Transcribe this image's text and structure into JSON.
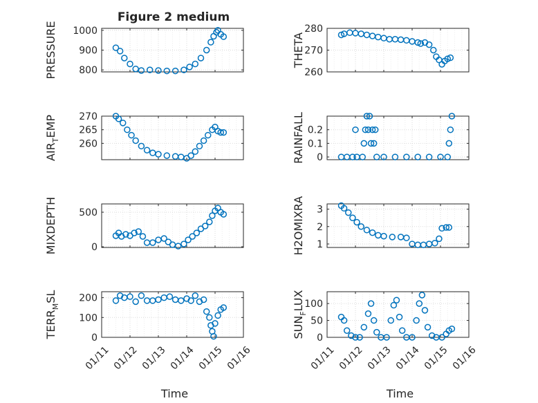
{
  "figure": {
    "title": "Figure 2 medium",
    "marker_color": "#0072bd",
    "grid_color": "#d9d9d9",
    "axis_color": "#262626"
  },
  "chart_data": [
    {
      "type": "scatter",
      "title": "Figure 2 medium",
      "ylabel": "PRESSURE",
      "ylabel_main": "PRESSURE",
      "ylabel_sub": "",
      "ylabel_tail": "",
      "xlabel": "",
      "xlim": [
        0,
        5
      ],
      "ylim": [
        790,
        1010
      ],
      "yticks": [
        800,
        900,
        1000
      ],
      "ytick_labels": [
        "800",
        "900",
        "1000"
      ],
      "xticks": [
        0,
        1,
        2,
        3,
        4,
        5
      ],
      "xtick_labels": [
        "01/11",
        "01/12",
        "01/13",
        "01/14",
        "01/15",
        "01/16"
      ],
      "show_xtick_labels": false,
      "grid": true,
      "points": [
        [
          0.5,
          912
        ],
        [
          0.65,
          895
        ],
        [
          0.8,
          860
        ],
        [
          1.0,
          830
        ],
        [
          1.2,
          805
        ],
        [
          1.4,
          797
        ],
        [
          1.7,
          800
        ],
        [
          2.0,
          797
        ],
        [
          2.3,
          795
        ],
        [
          2.6,
          795
        ],
        [
          2.9,
          800
        ],
        [
          3.1,
          815
        ],
        [
          3.3,
          830
        ],
        [
          3.5,
          860
        ],
        [
          3.7,
          900
        ],
        [
          3.85,
          940
        ],
        [
          3.95,
          970
        ],
        [
          4.05,
          990
        ],
        [
          4.1,
          1000
        ],
        [
          4.2,
          980
        ],
        [
          4.3,
          968
        ]
      ]
    },
    {
      "type": "scatter",
      "ylabel": "THETA",
      "ylabel_main": "THETA",
      "ylabel_sub": "",
      "ylabel_tail": "",
      "xlabel": "",
      "xlim": [
        0,
        5
      ],
      "ylim": [
        260,
        280
      ],
      "yticks": [
        260,
        270,
        280
      ],
      "ytick_labels": [
        "260",
        "270",
        "280"
      ],
      "xticks": [
        0,
        1,
        2,
        3,
        4,
        5
      ],
      "xtick_labels": [
        "01/11",
        "01/12",
        "01/13",
        "01/14",
        "01/15",
        "01/16"
      ],
      "show_xtick_labels": false,
      "grid": true,
      "points": [
        [
          0.5,
          277
        ],
        [
          0.6,
          277.5
        ],
        [
          0.8,
          278
        ],
        [
          1.0,
          277.8
        ],
        [
          1.2,
          277.5
        ],
        [
          1.4,
          277
        ],
        [
          1.6,
          276.5
        ],
        [
          1.8,
          276
        ],
        [
          2.0,
          275.5
        ],
        [
          2.2,
          275
        ],
        [
          2.4,
          275
        ],
        [
          2.6,
          274.8
        ],
        [
          2.8,
          274.5
        ],
        [
          3.0,
          274
        ],
        [
          3.2,
          273.5
        ],
        [
          3.3,
          273
        ],
        [
          3.45,
          273.5
        ],
        [
          3.6,
          272.5
        ],
        [
          3.75,
          270
        ],
        [
          3.85,
          267
        ],
        [
          3.95,
          265.5
        ],
        [
          4.05,
          263.5
        ],
        [
          4.15,
          265
        ],
        [
          4.25,
          266
        ],
        [
          4.35,
          266.5
        ]
      ]
    },
    {
      "type": "scatter",
      "ylabel": "AIR_TEMP",
      "ylabel_main": "AIR",
      "ylabel_sub": "T",
      "ylabel_tail": "EMP",
      "xlabel": "",
      "xlim": [
        0,
        5
      ],
      "ylim": [
        254,
        270
      ],
      "yticks": [
        260,
        265,
        270
      ],
      "ytick_labels": [
        "260",
        "265",
        "270"
      ],
      "xticks": [
        0,
        1,
        2,
        3,
        4,
        5
      ],
      "xtick_labels": [
        "01/11",
        "01/12",
        "01/13",
        "01/14",
        "01/15",
        "01/16"
      ],
      "show_xtick_labels": false,
      "grid": true,
      "points": [
        [
          0.5,
          270
        ],
        [
          0.6,
          269
        ],
        [
          0.75,
          267.5
        ],
        [
          0.9,
          265
        ],
        [
          1.05,
          263
        ],
        [
          1.2,
          261
        ],
        [
          1.4,
          259
        ],
        [
          1.6,
          257.5
        ],
        [
          1.8,
          256.5
        ],
        [
          2.0,
          256
        ],
        [
          2.3,
          255.5
        ],
        [
          2.6,
          255.2
        ],
        [
          2.8,
          255
        ],
        [
          3.0,
          254.5
        ],
        [
          3.15,
          255.5
        ],
        [
          3.3,
          257
        ],
        [
          3.45,
          259
        ],
        [
          3.6,
          261
        ],
        [
          3.75,
          263
        ],
        [
          3.9,
          265
        ],
        [
          4.0,
          266
        ],
        [
          4.1,
          264.5
        ],
        [
          4.2,
          264
        ],
        [
          4.3,
          264
        ]
      ]
    },
    {
      "type": "scatter",
      "ylabel": "RAINFALL",
      "ylabel_main": "RAINFALL",
      "ylabel_sub": "",
      "ylabel_tail": "",
      "xlabel": "",
      "xlim": [
        0,
        5
      ],
      "ylim": [
        -0.02,
        0.3
      ],
      "yticks": [
        0,
        0.1,
        0.2
      ],
      "ytick_labels": [
        "0",
        "0.1",
        "0.2"
      ],
      "xticks": [
        0,
        1,
        2,
        3,
        4,
        5
      ],
      "xtick_labels": [
        "01/11",
        "01/12",
        "01/13",
        "01/14",
        "01/15",
        "01/16"
      ],
      "show_xtick_labels": false,
      "grid": true,
      "points": [
        [
          0.5,
          0
        ],
        [
          0.7,
          0
        ],
        [
          0.9,
          0
        ],
        [
          1.0,
          0.2
        ],
        [
          1.05,
          0
        ],
        [
          1.25,
          0
        ],
        [
          1.3,
          0.1
        ],
        [
          1.35,
          0.2
        ],
        [
          1.4,
          0.3
        ],
        [
          1.45,
          0.2
        ],
        [
          1.5,
          0.3
        ],
        [
          1.55,
          0.1
        ],
        [
          1.6,
          0.2
        ],
        [
          1.65,
          0.1
        ],
        [
          1.7,
          0.2
        ],
        [
          1.75,
          0
        ],
        [
          2.0,
          0
        ],
        [
          2.4,
          0
        ],
        [
          2.8,
          0
        ],
        [
          3.2,
          0
        ],
        [
          3.6,
          0
        ],
        [
          4.0,
          0
        ],
        [
          4.25,
          0
        ],
        [
          4.3,
          0.1
        ],
        [
          4.35,
          0.2
        ],
        [
          4.4,
          0.3
        ]
      ]
    },
    {
      "type": "scatter",
      "ylabel": "MIXDEPTH",
      "ylabel_main": "MIXDEPTH",
      "ylabel_sub": "",
      "ylabel_tail": "",
      "xlabel": "",
      "xlim": [
        0,
        5
      ],
      "ylim": [
        -10,
        620
      ],
      "yticks": [
        0,
        500
      ],
      "ytick_labels": [
        "0",
        "500"
      ],
      "xticks": [
        0,
        1,
        2,
        3,
        4,
        5
      ],
      "xtick_labels": [
        "01/11",
        "01/12",
        "01/13",
        "01/14",
        "01/15",
        "01/16"
      ],
      "show_xtick_labels": false,
      "grid": true,
      "points": [
        [
          0.5,
          160
        ],
        [
          0.6,
          200
        ],
        [
          0.7,
          150
        ],
        [
          0.85,
          180
        ],
        [
          1.0,
          160
        ],
        [
          1.15,
          200
        ],
        [
          1.3,
          220
        ],
        [
          1.45,
          150
        ],
        [
          1.6,
          60
        ],
        [
          1.8,
          60
        ],
        [
          2.0,
          100
        ],
        [
          2.2,
          120
        ],
        [
          2.35,
          70
        ],
        [
          2.5,
          30
        ],
        [
          2.7,
          10
        ],
        [
          2.9,
          40
        ],
        [
          3.05,
          100
        ],
        [
          3.2,
          150
        ],
        [
          3.35,
          200
        ],
        [
          3.5,
          260
        ],
        [
          3.65,
          300
        ],
        [
          3.8,
          360
        ],
        [
          3.9,
          450
        ],
        [
          4.0,
          520
        ],
        [
          4.1,
          560
        ],
        [
          4.2,
          500
        ],
        [
          4.3,
          470
        ]
      ]
    },
    {
      "type": "scatter",
      "ylabel": "H2OMIXRA",
      "ylabel_main": "H2OMIXRA",
      "ylabel_sub": "",
      "ylabel_tail": "",
      "xlabel": "",
      "xlim": [
        0,
        5
      ],
      "ylim": [
        0.8,
        3.3
      ],
      "yticks": [
        1,
        2,
        3
      ],
      "ytick_labels": [
        "1",
        "2",
        "3"
      ],
      "xticks": [
        0,
        1,
        2,
        3,
        4,
        5
      ],
      "xtick_labels": [
        "01/11",
        "01/12",
        "01/13",
        "01/14",
        "01/15",
        "01/16"
      ],
      "show_xtick_labels": false,
      "grid": true,
      "points": [
        [
          0.5,
          3.2
        ],
        [
          0.6,
          3.05
        ],
        [
          0.75,
          2.8
        ],
        [
          0.9,
          2.5
        ],
        [
          1.05,
          2.25
        ],
        [
          1.2,
          2.0
        ],
        [
          1.4,
          1.8
        ],
        [
          1.6,
          1.65
        ],
        [
          1.8,
          1.5
        ],
        [
          2.0,
          1.45
        ],
        [
          2.3,
          1.4
        ],
        [
          2.6,
          1.4
        ],
        [
          2.8,
          1.35
        ],
        [
          3.0,
          1.0
        ],
        [
          3.2,
          0.95
        ],
        [
          3.4,
          0.95
        ],
        [
          3.6,
          1.0
        ],
        [
          3.8,
          1.05
        ],
        [
          3.95,
          1.3
        ],
        [
          4.05,
          1.9
        ],
        [
          4.2,
          1.95
        ],
        [
          4.3,
          1.95
        ]
      ]
    },
    {
      "type": "scatter",
      "ylabel": "TERR_MSL",
      "ylabel_main": "TERR",
      "ylabel_sub": "M",
      "ylabel_tail": "SL",
      "xlabel": "Time",
      "xlim": [
        0,
        5
      ],
      "ylim": [
        0,
        230
      ],
      "yticks": [
        0,
        100,
        200
      ],
      "ytick_labels": [
        "0",
        "100",
        "200"
      ],
      "xticks": [
        0,
        1,
        2,
        3,
        4,
        5
      ],
      "xtick_labels": [
        "01/11",
        "01/12",
        "01/13",
        "01/14",
        "01/15",
        "01/16"
      ],
      "show_xtick_labels": true,
      "grid": true,
      "points": [
        [
          0.5,
          185
        ],
        [
          0.65,
          210
        ],
        [
          0.8,
          200
        ],
        [
          1.0,
          205
        ],
        [
          1.2,
          180
        ],
        [
          1.4,
          210
        ],
        [
          1.6,
          185
        ],
        [
          1.8,
          185
        ],
        [
          2.0,
          190
        ],
        [
          2.2,
          200
        ],
        [
          2.4,
          205
        ],
        [
          2.6,
          190
        ],
        [
          2.8,
          185
        ],
        [
          3.0,
          195
        ],
        [
          3.15,
          185
        ],
        [
          3.3,
          210
        ],
        [
          3.45,
          180
        ],
        [
          3.6,
          190
        ],
        [
          3.7,
          130
        ],
        [
          3.8,
          100
        ],
        [
          3.85,
          60
        ],
        [
          3.9,
          30
        ],
        [
          3.95,
          5
        ],
        [
          4.0,
          70
        ],
        [
          4.1,
          110
        ],
        [
          4.2,
          140
        ],
        [
          4.3,
          150
        ]
      ]
    },
    {
      "type": "scatter",
      "ylabel": "SUN_FLUX",
      "ylabel_main": "SUN",
      "ylabel_sub": "F",
      "ylabel_tail": "LUX",
      "xlabel": "Time",
      "xlim": [
        0,
        5
      ],
      "ylim": [
        0,
        135
      ],
      "yticks": [
        0,
        50,
        100
      ],
      "ytick_labels": [
        "0",
        "50",
        "100"
      ],
      "xticks": [
        0,
        1,
        2,
        3,
        4,
        5
      ],
      "xtick_labels": [
        "01/11",
        "01/12",
        "01/13",
        "01/14",
        "01/15",
        "01/16"
      ],
      "show_xtick_labels": true,
      "grid": true,
      "points": [
        [
          0.5,
          60
        ],
        [
          0.6,
          50
        ],
        [
          0.7,
          20
        ],
        [
          0.85,
          5
        ],
        [
          1.0,
          0
        ],
        [
          1.15,
          0
        ],
        [
          1.3,
          30
        ],
        [
          1.45,
          70
        ],
        [
          1.55,
          100
        ],
        [
          1.65,
          50
        ],
        [
          1.75,
          15
        ],
        [
          1.9,
          0
        ],
        [
          2.1,
          0
        ],
        [
          2.25,
          50
        ],
        [
          2.35,
          95
        ],
        [
          2.45,
          110
        ],
        [
          2.55,
          60
        ],
        [
          2.65,
          20
        ],
        [
          2.8,
          0
        ],
        [
          3.0,
          0
        ],
        [
          3.15,
          50
        ],
        [
          3.25,
          100
        ],
        [
          3.35,
          125
        ],
        [
          3.45,
          80
        ],
        [
          3.55,
          30
        ],
        [
          3.7,
          5
        ],
        [
          3.85,
          0
        ],
        [
          4.05,
          0
        ],
        [
          4.2,
          10
        ],
        [
          4.3,
          20
        ],
        [
          4.4,
          25
        ]
      ]
    }
  ]
}
